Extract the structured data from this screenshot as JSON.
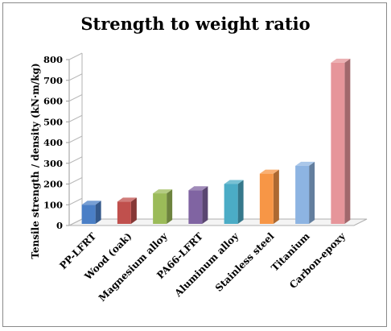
{
  "chart_data": {
    "type": "bar",
    "title": "Strength to weight ratio",
    "xlabel": "",
    "ylabel": "Tensile strength / density (kN·m/kg)",
    "categories": [
      "PP-LFRT",
      "Wood (oak)",
      "Magnesium alloy",
      "PA66-LFRT",
      "Aluminum alloy",
      "Stainless steel",
      "Titanium",
      "Carbon-epoxy"
    ],
    "values": [
      100,
      115,
      155,
      170,
      200,
      250,
      288,
      785
    ],
    "ylim": [
      0,
      800
    ],
    "yticks": [
      0,
      100,
      200,
      300,
      400,
      500,
      600,
      700,
      800
    ],
    "colors": [
      "#4a7fc6",
      "#c0504d",
      "#9bbb59",
      "#8064a2",
      "#4bacc6",
      "#f79646",
      "#8db4e2",
      "#e6959a"
    ],
    "grid": false,
    "legend": "none",
    "style": "3d"
  }
}
